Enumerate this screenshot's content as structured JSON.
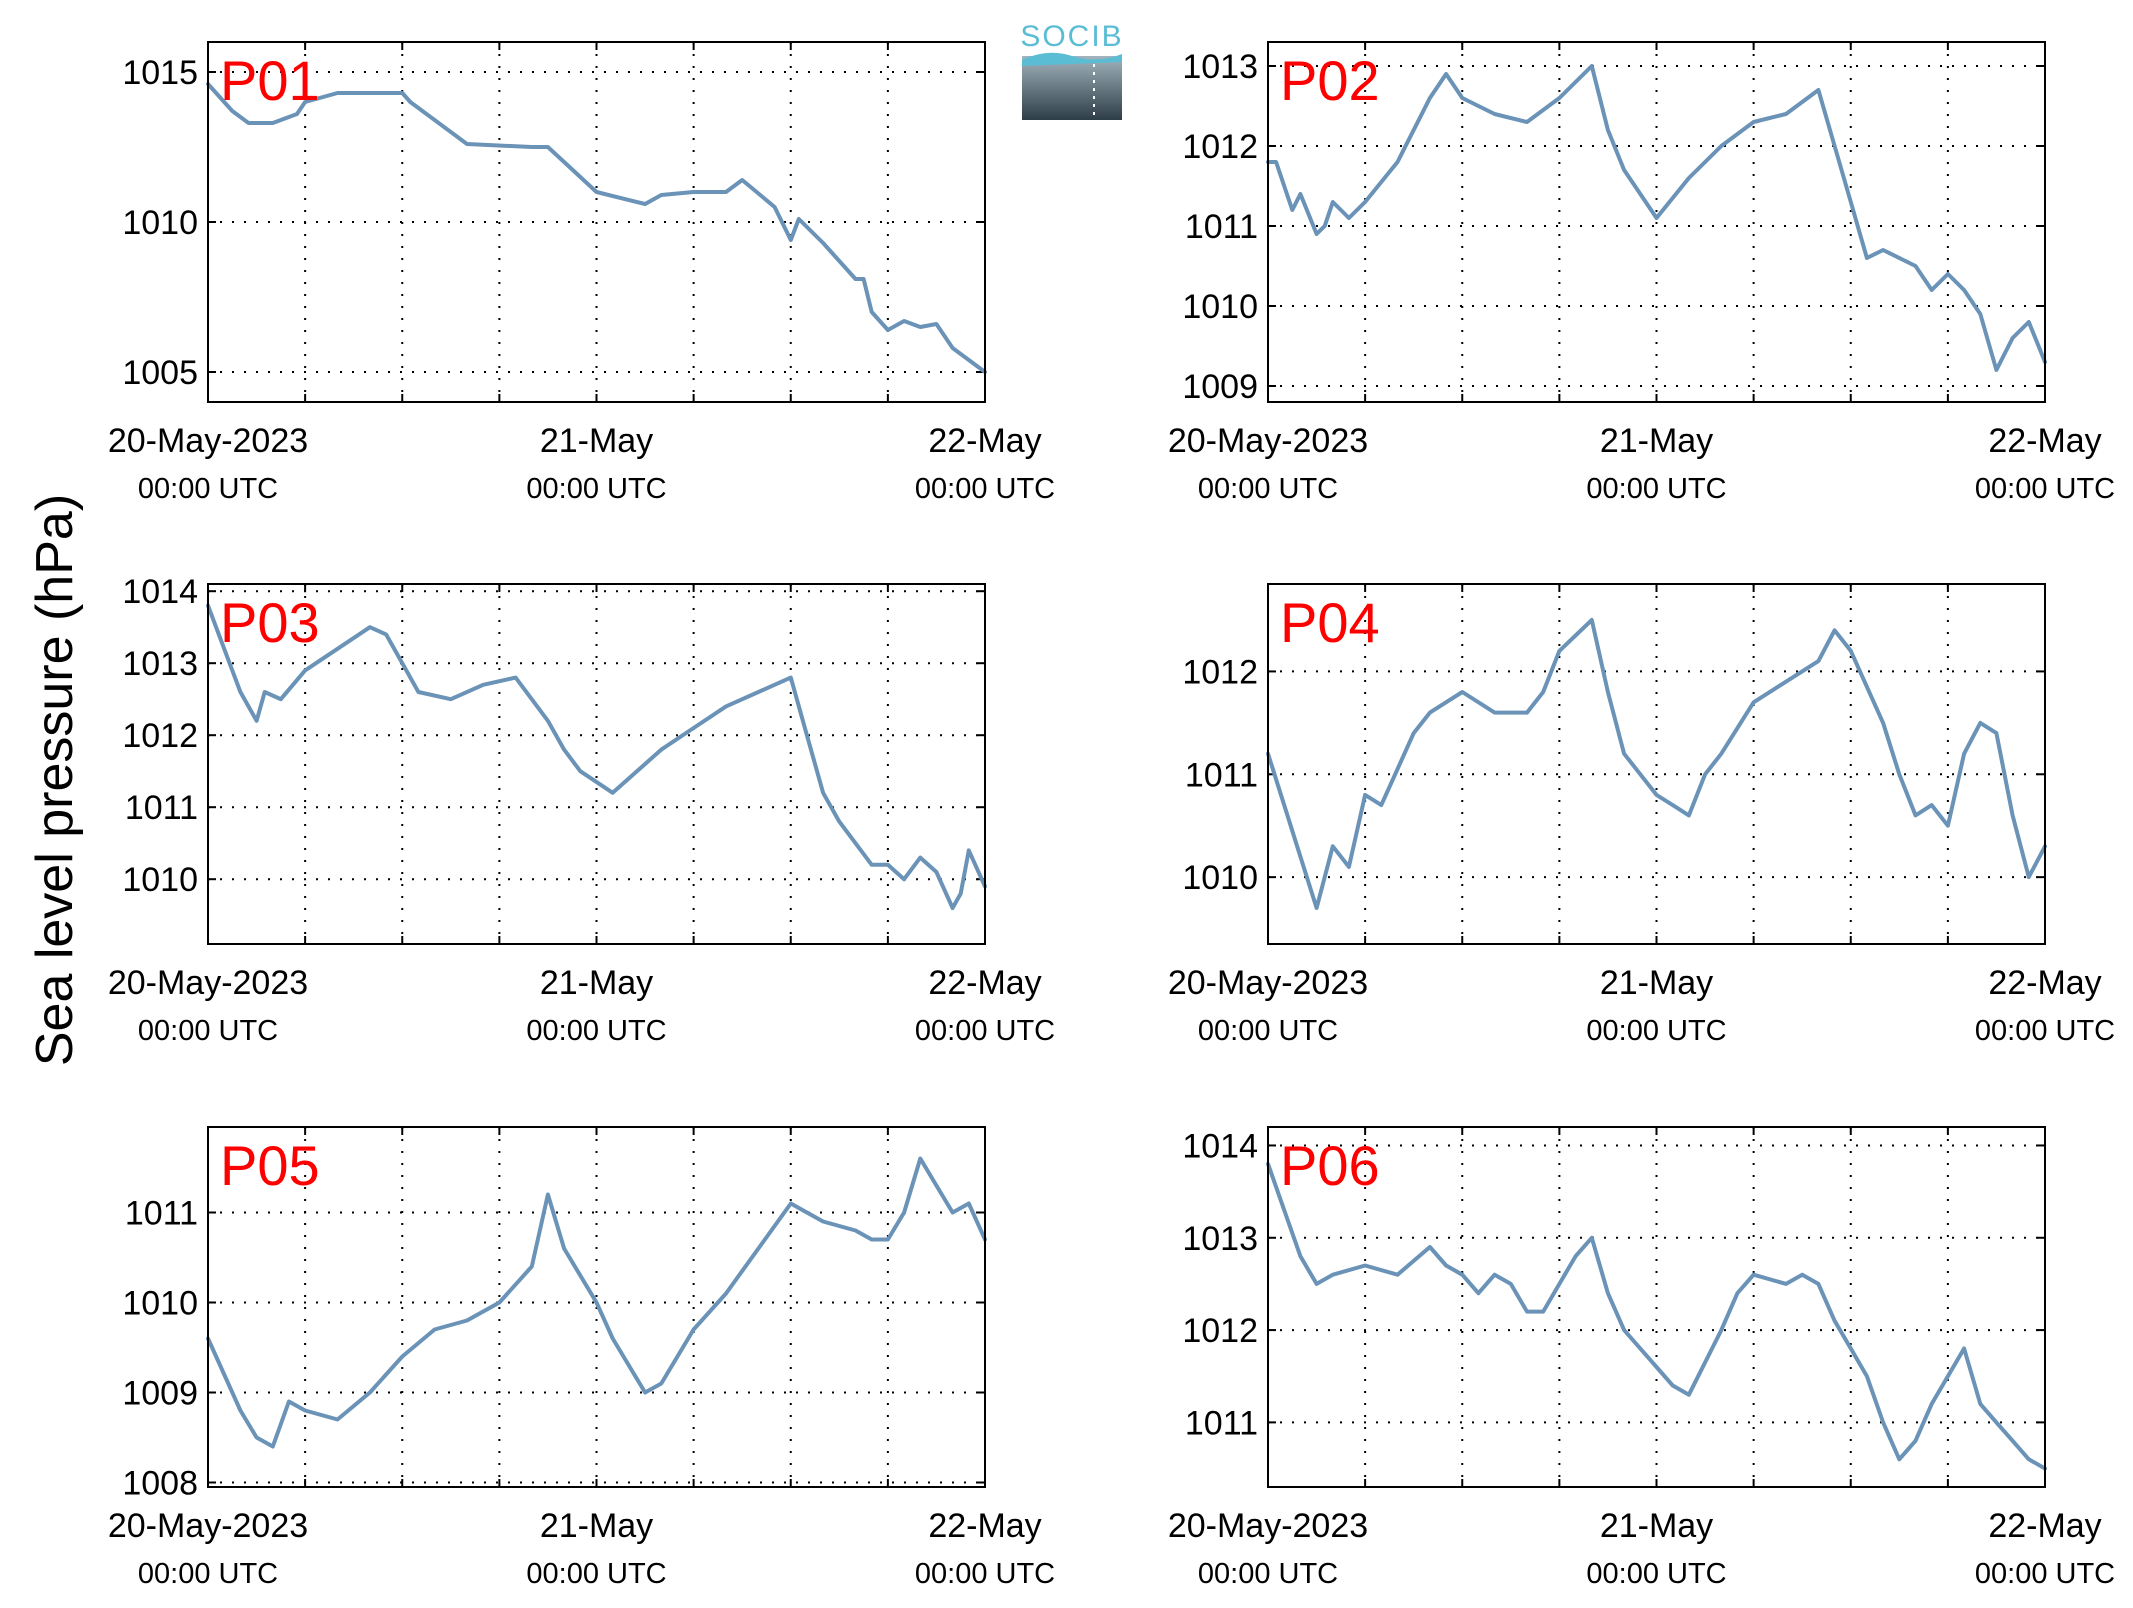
{
  "figure": {
    "ylabel": "Sea level pressure (hPa)",
    "logo": "SOCIB",
    "colors": {
      "line": "#6a93b7",
      "panel_label": "#ff0000",
      "logo_text": "#5bbdd4"
    }
  },
  "chart_data": [
    {
      "type": "line",
      "label": "P01",
      "ylim": [
        1004,
        1016
      ],
      "yticks": [
        1005,
        1010,
        1015
      ],
      "xlim": [
        0,
        48
      ],
      "xgrid": [
        0,
        6,
        12,
        18,
        24,
        30,
        36,
        42,
        48
      ],
      "xticks": [
        {
          "x": 0,
          "label": "20-May-2023",
          "sub": "00:00 UTC"
        },
        {
          "x": 24,
          "label": "21-May",
          "sub": "00:00 UTC"
        },
        {
          "x": 48,
          "label": "22-May",
          "sub": "00:00 UTC"
        }
      ],
      "x": [
        0,
        1.5,
        2.5,
        4,
        5.5,
        6,
        8,
        12,
        12.5,
        16,
        20,
        21,
        24,
        27,
        28,
        30,
        32,
        33,
        35,
        36,
        36.5,
        38,
        40,
        40.5,
        41,
        42,
        43,
        44,
        45,
        46,
        48
      ],
      "y": [
        1014.6,
        1013.7,
        1013.3,
        1013.3,
        1013.6,
        1014.0,
        1014.3,
        1014.3,
        1014.0,
        1012.6,
        1012.5,
        1012.5,
        1011.0,
        1010.6,
        1010.9,
        1011.0,
        1011.0,
        1011.4,
        1010.5,
        1009.4,
        1010.1,
        1009.3,
        1008.1,
        1008.1,
        1007.0,
        1006.4,
        1006.7,
        1006.5,
        1006.6,
        1005.8,
        1005.0
      ],
      "grid": true,
      "legend": "none"
    },
    {
      "type": "line",
      "label": "P02",
      "ylim": [
        1008.8,
        1013.3
      ],
      "yticks": [
        1009,
        1010,
        1011,
        1012,
        1013
      ],
      "xlim": [
        0,
        48
      ],
      "xgrid": [
        0,
        6,
        12,
        18,
        24,
        30,
        36,
        42,
        48
      ],
      "xticks": [
        {
          "x": 0,
          "label": "20-May-2023",
          "sub": "00:00 UTC"
        },
        {
          "x": 24,
          "label": "21-May",
          "sub": "00:00 UTC"
        },
        {
          "x": 48,
          "label": "22-May",
          "sub": "00:00 UTC"
        }
      ],
      "x": [
        0,
        0.5,
        1.5,
        2,
        3,
        3.5,
        4,
        5,
        6,
        8,
        10,
        11,
        12,
        13,
        14,
        16,
        18,
        20,
        21,
        22,
        24,
        26,
        28,
        30,
        32,
        34,
        35,
        36,
        37,
        38,
        40,
        41,
        42,
        43,
        44,
        45,
        46,
        47,
        48
      ],
      "y": [
        1011.8,
        1011.8,
        1011.2,
        1011.4,
        1010.9,
        1011.0,
        1011.3,
        1011.1,
        1011.3,
        1011.8,
        1012.6,
        1012.9,
        1012.6,
        1012.5,
        1012.4,
        1012.3,
        1012.6,
        1013.0,
        1012.2,
        1011.7,
        1011.1,
        1011.6,
        1012.0,
        1012.3,
        1012.4,
        1012.7,
        1012.0,
        1011.3,
        1010.6,
        1010.7,
        1010.5,
        1010.2,
        1010.4,
        1010.2,
        1009.9,
        1009.2,
        1009.6,
        1009.8,
        1009.3
      ],
      "grid": true,
      "legend": "none"
    },
    {
      "type": "line",
      "label": "P03",
      "ylim": [
        1009.1,
        1014.1
      ],
      "yticks": [
        1010,
        1011,
        1012,
        1013,
        1014
      ],
      "xlim": [
        0,
        48
      ],
      "xgrid": [
        0,
        6,
        12,
        18,
        24,
        30,
        36,
        42,
        48
      ],
      "xticks": [
        {
          "x": 0,
          "label": "20-May-2023",
          "sub": "00:00 UTC"
        },
        {
          "x": 24,
          "label": "21-May",
          "sub": "00:00 UTC"
        },
        {
          "x": 48,
          "label": "22-May",
          "sub": "00:00 UTC"
        }
      ],
      "x": [
        0,
        1,
        2,
        3,
        3.5,
        4.5,
        6,
        8,
        10,
        11,
        12,
        13,
        15,
        17,
        19,
        21,
        22,
        23,
        25,
        27,
        28,
        30,
        32,
        34,
        36,
        37,
        38,
        39,
        40,
        41,
        42,
        43,
        44,
        45,
        46,
        46.5,
        47,
        48
      ],
      "y": [
        1013.8,
        1013.2,
        1012.6,
        1012.2,
        1012.6,
        1012.5,
        1012.9,
        1013.2,
        1013.5,
        1013.4,
        1013.0,
        1012.6,
        1012.5,
        1012.7,
        1012.8,
        1012.2,
        1011.8,
        1011.5,
        1011.2,
        1011.6,
        1011.8,
        1012.1,
        1012.4,
        1012.6,
        1012.8,
        1012.0,
        1011.2,
        1010.8,
        1010.5,
        1010.2,
        1010.2,
        1010.0,
        1010.3,
        1010.1,
        1009.6,
        1009.8,
        1010.4,
        1009.9
      ],
      "grid": true,
      "legend": "none"
    },
    {
      "type": "line",
      "label": "P04",
      "ylim": [
        1009.35,
        1012.85
      ],
      "yticks": [
        1010,
        1011,
        1012
      ],
      "xlim": [
        0,
        48
      ],
      "xgrid": [
        0,
        6,
        12,
        18,
        24,
        30,
        36,
        42,
        48
      ],
      "xticks": [
        {
          "x": 0,
          "label": "20-May-2023",
          "sub": "00:00 UTC"
        },
        {
          "x": 24,
          "label": "21-May",
          "sub": "00:00 UTC"
        },
        {
          "x": 48,
          "label": "22-May",
          "sub": "00:00 UTC"
        }
      ],
      "x": [
        0,
        1,
        2,
        3,
        3.5,
        4,
        5,
        6,
        7,
        9,
        10,
        12,
        14,
        16,
        17,
        18,
        20,
        21,
        22,
        24,
        25,
        26,
        27,
        28,
        30,
        32,
        34,
        35,
        36,
        38,
        39,
        40,
        41,
        42,
        43,
        44,
        45,
        46,
        47,
        48
      ],
      "y": [
        1011.2,
        1010.7,
        1010.2,
        1009.7,
        1010.0,
        1010.3,
        1010.1,
        1010.8,
        1010.7,
        1011.4,
        1011.6,
        1011.8,
        1011.6,
        1011.6,
        1011.8,
        1012.2,
        1012.5,
        1011.8,
        1011.2,
        1010.8,
        1010.7,
        1010.6,
        1011.0,
        1011.2,
        1011.7,
        1011.9,
        1012.1,
        1012.4,
        1012.2,
        1011.5,
        1011.0,
        1010.6,
        1010.7,
        1010.5,
        1011.2,
        1011.5,
        1011.4,
        1010.6,
        1010.0,
        1010.3
      ],
      "grid": true,
      "legend": "none"
    },
    {
      "type": "line",
      "label": "P05",
      "ylim": [
        1007.95,
        1011.95
      ],
      "yticks": [
        1008,
        1009,
        1010,
        1011
      ],
      "xlim": [
        0,
        48
      ],
      "xgrid": [
        0,
        6,
        12,
        18,
        24,
        30,
        36,
        42,
        48
      ],
      "xticks": [
        {
          "x": 0,
          "label": "20-May-2023",
          "sub": "00:00 UTC"
        },
        {
          "x": 24,
          "label": "21-May",
          "sub": "00:00 UTC"
        },
        {
          "x": 48,
          "label": "22-May",
          "sub": "00:00 UTC"
        }
      ],
      "x": [
        0,
        1,
        2,
        3,
        4,
        5,
        6,
        8,
        10,
        12,
        14,
        16,
        18,
        20,
        21,
        22,
        24,
        25,
        26,
        27,
        28,
        30,
        32,
        34,
        36,
        37,
        38,
        40,
        41,
        42,
        43,
        44,
        45,
        46,
        47,
        48
      ],
      "y": [
        1009.6,
        1009.2,
        1008.8,
        1008.5,
        1008.4,
        1008.9,
        1008.8,
        1008.7,
        1009.0,
        1009.4,
        1009.7,
        1009.8,
        1010.0,
        1010.4,
        1011.2,
        1010.6,
        1010.0,
        1009.6,
        1009.3,
        1009.0,
        1009.1,
        1009.7,
        1010.1,
        1010.6,
        1011.1,
        1011.0,
        1010.9,
        1010.8,
        1010.7,
        1010.7,
        1011.0,
        1011.6,
        1011.3,
        1011.0,
        1011.1,
        1010.7
      ],
      "grid": true,
      "legend": "none"
    },
    {
      "type": "line",
      "label": "P06",
      "ylim": [
        1010.3,
        1014.2
      ],
      "yticks": [
        1011,
        1012,
        1013,
        1014
      ],
      "xlim": [
        0,
        48
      ],
      "xgrid": [
        0,
        6,
        12,
        18,
        24,
        30,
        36,
        42,
        48
      ],
      "xticks": [
        {
          "x": 0,
          "label": "20-May-2023",
          "sub": "00:00 UTC"
        },
        {
          "x": 24,
          "label": "21-May",
          "sub": "00:00 UTC"
        },
        {
          "x": 48,
          "label": "22-May",
          "sub": "00:00 UTC"
        }
      ],
      "x": [
        0,
        1,
        2,
        3,
        4,
        6,
        8,
        10,
        11,
        12,
        13,
        14,
        15,
        16,
        17,
        18,
        19,
        20,
        21,
        22,
        24,
        25,
        26,
        28,
        29,
        30,
        32,
        33,
        34,
        35,
        36,
        37,
        38,
        39,
        40,
        41,
        42,
        43,
        44,
        45,
        46,
        47,
        48
      ],
      "y": [
        1013.8,
        1013.3,
        1012.8,
        1012.5,
        1012.6,
        1012.7,
        1012.6,
        1012.9,
        1012.7,
        1012.6,
        1012.4,
        1012.6,
        1012.5,
        1012.2,
        1012.2,
        1012.5,
        1012.8,
        1013.0,
        1012.4,
        1012.0,
        1011.6,
        1011.4,
        1011.3,
        1012.0,
        1012.4,
        1012.6,
        1012.5,
        1012.6,
        1012.5,
        1012.1,
        1011.8,
        1011.5,
        1011.0,
        1010.6,
        1010.8,
        1011.2,
        1011.5,
        1011.8,
        1011.2,
        1011.0,
        1010.8,
        1010.6,
        1010.5
      ],
      "grid": true,
      "legend": "none"
    }
  ]
}
